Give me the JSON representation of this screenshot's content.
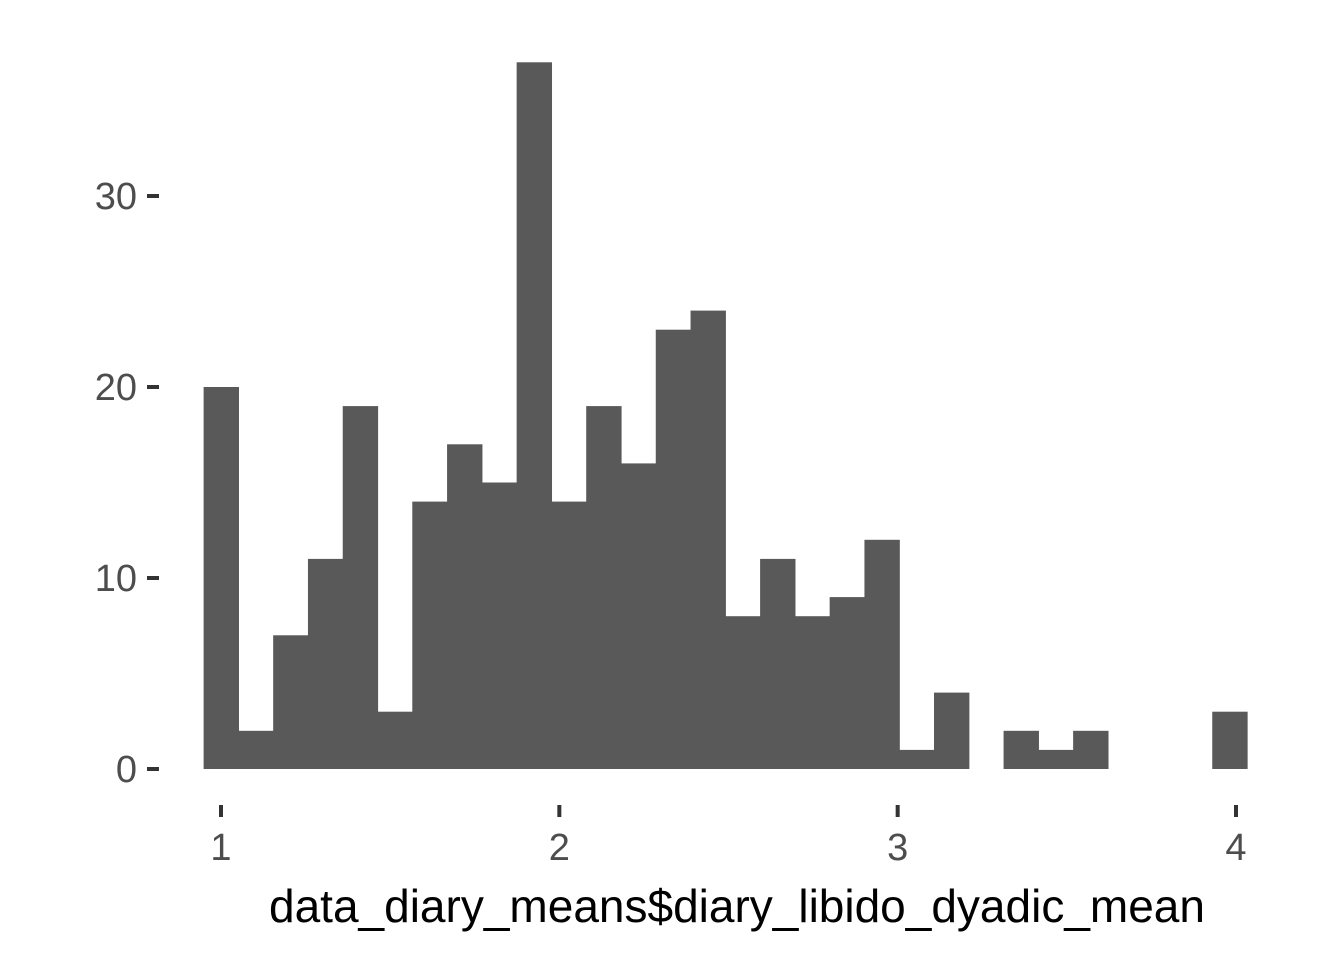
{
  "chart_data": {
    "type": "bar",
    "subtype": "histogram",
    "title": "",
    "xlabel": "data_diary_means$diary_libido_dyadic_mean",
    "ylabel": "",
    "x_ticks": [
      1,
      2,
      3,
      4
    ],
    "y_ticks": [
      0,
      10,
      20,
      30
    ],
    "xlim": [
      1.0,
      4.083
    ],
    "ylim": [
      0,
      37
    ],
    "grid": false,
    "bin_width": 0.1028,
    "bins": [
      {
        "x0": 0.9486,
        "x1": 1.0514,
        "count": 20
      },
      {
        "x0": 1.0514,
        "x1": 1.1542,
        "count": 2
      },
      {
        "x0": 1.1542,
        "x1": 1.257,
        "count": 7
      },
      {
        "x0": 1.257,
        "x1": 1.3598,
        "count": 11
      },
      {
        "x0": 1.3598,
        "x1": 1.4626,
        "count": 19
      },
      {
        "x0": 1.4626,
        "x1": 1.5654,
        "count": 3
      },
      {
        "x0": 1.5654,
        "x1": 1.6682,
        "count": 14
      },
      {
        "x0": 1.6682,
        "x1": 1.771,
        "count": 17
      },
      {
        "x0": 1.771,
        "x1": 1.8738,
        "count": 15
      },
      {
        "x0": 1.8738,
        "x1": 1.9766,
        "count": 37
      },
      {
        "x0": 1.9766,
        "x1": 2.0794,
        "count": 14
      },
      {
        "x0": 2.0794,
        "x1": 2.1822,
        "count": 19
      },
      {
        "x0": 2.1822,
        "x1": 2.285,
        "count": 16
      },
      {
        "x0": 2.285,
        "x1": 2.3878,
        "count": 23
      },
      {
        "x0": 2.3878,
        "x1": 2.4906,
        "count": 24
      },
      {
        "x0": 2.4906,
        "x1": 2.5934,
        "count": 8
      },
      {
        "x0": 2.5934,
        "x1": 2.6962,
        "count": 11
      },
      {
        "x0": 2.6962,
        "x1": 2.799,
        "count": 8
      },
      {
        "x0": 2.799,
        "x1": 2.9018,
        "count": 9
      },
      {
        "x0": 2.9018,
        "x1": 3.0046,
        "count": 12
      },
      {
        "x0": 3.0046,
        "x1": 3.1074,
        "count": 1
      },
      {
        "x0": 3.1074,
        "x1": 3.2102,
        "count": 4
      },
      {
        "x0": 3.2102,
        "x1": 3.313,
        "count": 0
      },
      {
        "x0": 3.313,
        "x1": 3.4158,
        "count": 2
      },
      {
        "x0": 3.4158,
        "x1": 3.5186,
        "count": 1
      },
      {
        "x0": 3.5186,
        "x1": 3.6214,
        "count": 2
      },
      {
        "x0": 3.6214,
        "x1": 3.7242,
        "count": 0
      },
      {
        "x0": 3.7242,
        "x1": 3.827,
        "count": 0
      },
      {
        "x0": 3.827,
        "x1": 3.9298,
        "count": 0
      },
      {
        "x0": 3.9298,
        "x1": 4.0326,
        "count": 3
      }
    ],
    "colors": {
      "bar_fill": "#595959",
      "tick_label": "#4d4d4d",
      "tick_mark": "#333333",
      "axis_title": "#000000",
      "background": "#ffffff"
    }
  }
}
